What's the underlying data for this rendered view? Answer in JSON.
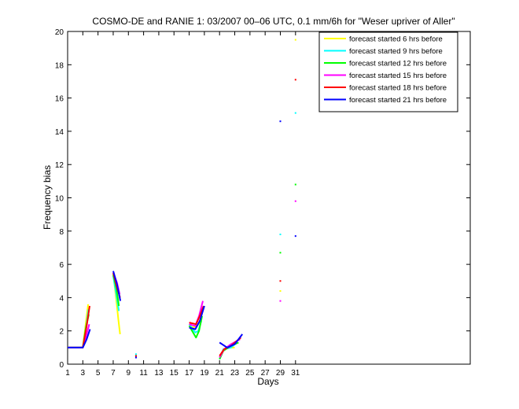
{
  "chart_data": {
    "type": "line",
    "title": "COSMO-DE and RANIE 1: 03/2007 00–06 UTC, 0.1 mm/6h for \"Weser upriver of Aller\"",
    "xlabel": "Days",
    "ylabel": "Frequency bias",
    "xlim": [
      1,
      54
    ],
    "ylim": [
      0,
      20
    ],
    "xticks": [
      "1",
      "3",
      "5",
      "7",
      "9",
      "11",
      "13",
      "15",
      "17",
      "19",
      "21",
      "23",
      "25",
      "27",
      "29",
      "31"
    ],
    "yticks": [
      "0",
      "2",
      "4",
      "6",
      "8",
      "10",
      "12",
      "14",
      "16",
      "18",
      "20"
    ],
    "grid": false,
    "legend_position": "top-right",
    "series": [
      {
        "name": "forecast started 6 hrs before",
        "color": "#ffff00",
        "segments": [
          [
            [
              1,
              1.0
            ],
            [
              2,
              1.0
            ],
            [
              3,
              1.0
            ],
            [
              3.35,
              2.3
            ],
            [
              3.7,
              3.6
            ]
          ],
          [
            [
              7,
              5.4
            ],
            [
              7.4,
              3.9
            ],
            [
              7.7,
              2.6
            ],
            [
              7.9,
              1.8
            ]
          ],
          [
            [
              10,
              0.5
            ]
          ],
          [
            [
              17,
              2.3
            ],
            [
              17.6,
              2.2
            ],
            [
              18,
              2.3
            ],
            [
              18.4,
              2.5
            ]
          ],
          [
            [
              21,
              0.4
            ],
            [
              21.5,
              0.8
            ],
            [
              22,
              1.0
            ],
            [
              23,
              1.0
            ]
          ],
          [
            [
              29,
              4.4
            ]
          ],
          [
            [
              31,
              19.5
            ]
          ]
        ]
      },
      {
        "name": "forecast started 9 hrs before",
        "color": "#00ffff",
        "segments": [
          [
            [
              1,
              1.0
            ],
            [
              2,
              1.0
            ],
            [
              3,
              1.0
            ],
            [
              3.4,
              2.1
            ],
            [
              3.75,
              3.3
            ]
          ],
          [
            [
              7,
              5.3
            ],
            [
              7.4,
              4.2
            ],
            [
              7.75,
              3.2
            ]
          ],
          [
            [
              10,
              0.6
            ]
          ],
          [
            [
              17,
              2.4
            ],
            [
              17.8,
              1.9
            ],
            [
              18.2,
              2.0
            ],
            [
              18.6,
              2.6
            ]
          ],
          [
            [
              21,
              0.3
            ],
            [
              21.5,
              0.9
            ],
            [
              22.5,
              1.0
            ],
            [
              23.3,
              1.3
            ]
          ],
          [
            [
              29,
              7.8
            ]
          ],
          [
            [
              31,
              15.1
            ]
          ]
        ]
      },
      {
        "name": "forecast started 12 hrs before",
        "color": "#00ff00",
        "segments": [
          [
            [
              1,
              1.0
            ],
            [
              2,
              1.0
            ],
            [
              3,
              1.0
            ],
            [
              3.4,
              2.2
            ],
            [
              3.8,
              3.0
            ]
          ],
          [
            [
              7,
              5.4
            ],
            [
              7.4,
              4.6
            ],
            [
              7.75,
              3.5
            ]
          ],
          [
            [
              10,
              0.5
            ]
          ],
          [
            [
              17,
              2.3
            ],
            [
              17.9,
              1.6
            ],
            [
              18.3,
              2.0
            ],
            [
              18.7,
              2.9
            ]
          ],
          [
            [
              21,
              0.3
            ],
            [
              21.5,
              0.8
            ],
            [
              22.5,
              1.1
            ],
            [
              23.5,
              1.3
            ]
          ],
          [
            [
              29,
              6.7
            ]
          ],
          [
            [
              31,
              10.8
            ]
          ]
        ]
      },
      {
        "name": "forecast started 15 hrs before",
        "color": "#ff00ff",
        "segments": [
          [
            [
              1,
              1.0
            ],
            [
              2,
              1.0
            ],
            [
              3,
              1.0
            ],
            [
              3.5,
              1.8
            ],
            [
              3.85,
              2.4
            ]
          ],
          [
            [
              7,
              5.5
            ],
            [
              7.5,
              4.9
            ],
            [
              7.85,
              4.2
            ]
          ],
          [
            [
              10,
              0.4
            ]
          ],
          [
            [
              17,
              2.4
            ],
            [
              17.8,
              2.3
            ],
            [
              18.3,
              2.9
            ],
            [
              18.8,
              3.8
            ]
          ],
          [
            [
              21,
              0.4
            ],
            [
              21.6,
              0.9
            ],
            [
              22.5,
              1.2
            ],
            [
              23.7,
              1.5
            ]
          ],
          [
            [
              29,
              3.8
            ]
          ],
          [
            [
              31,
              9.8
            ]
          ]
        ]
      },
      {
        "name": "forecast started 18 hrs before",
        "color": "#ff0000",
        "segments": [
          [
            [
              1,
              1.0
            ],
            [
              2,
              1.0
            ],
            [
              3,
              1.0
            ],
            [
              3.5,
              2.3
            ],
            [
              3.9,
              3.5
            ]
          ],
          [
            [
              7,
              5.5
            ],
            [
              7.5,
              4.6
            ],
            [
              7.9,
              4.0
            ]
          ],
          [
            [
              10,
              0.5
            ]
          ],
          [
            [
              17,
              2.5
            ],
            [
              17.9,
              2.4
            ],
            [
              18.4,
              2.9
            ],
            [
              18.9,
              3.5
            ]
          ],
          [
            [
              21,
              0.5
            ],
            [
              21.6,
              0.9
            ],
            [
              22.5,
              1.1
            ],
            [
              23.8,
              1.6
            ]
          ],
          [
            [
              29,
              5.0
            ]
          ],
          [
            [
              31,
              17.1
            ]
          ]
        ]
      },
      {
        "name": "forecast started 21 hrs before",
        "color": "#0000ff",
        "segments": [
          [
            [
              1,
              1.0
            ],
            [
              2,
              1.0
            ],
            [
              3,
              1.0
            ],
            [
              3.5,
              1.5
            ],
            [
              3.95,
              2.1
            ]
          ],
          [
            [
              7,
              5.6
            ],
            [
              7.5,
              4.8
            ],
            [
              7.95,
              3.8
            ]
          ],
          [
            [
              10,
              0.4
            ]
          ],
          [
            [
              17,
              2.2
            ],
            [
              17.8,
              2.1
            ],
            [
              18.4,
              2.6
            ],
            [
              19,
              3.5
            ]
          ],
          [
            [
              21,
              1.3
            ],
            [
              22,
              1.0
            ],
            [
              23,
              1.2
            ],
            [
              24,
              1.8
            ]
          ],
          [
            [
              29,
              14.6
            ]
          ],
          [
            [
              31,
              7.7
            ]
          ]
        ]
      }
    ]
  }
}
